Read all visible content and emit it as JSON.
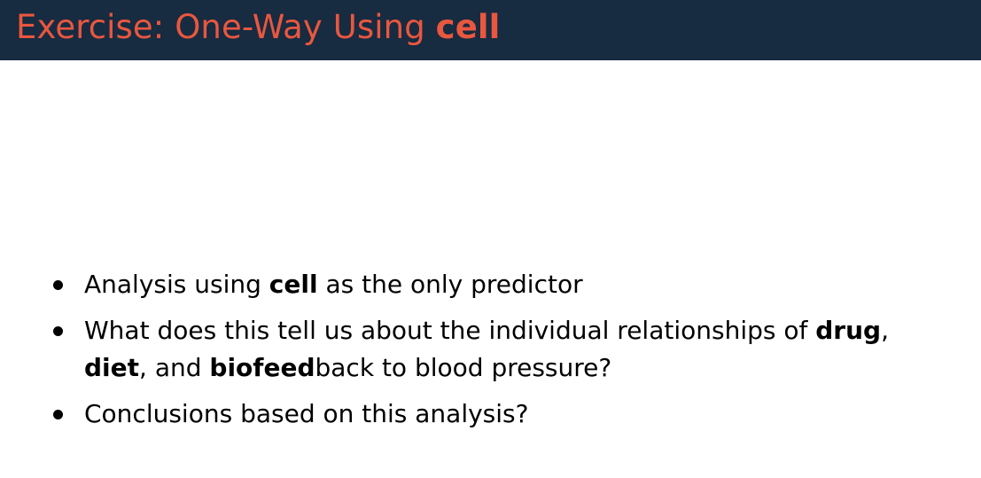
{
  "slide": {
    "title": {
      "prefix": "Exercise: One-Way Using ",
      "emphasis": "cell"
    },
    "bullets": [
      {
        "parts": [
          {
            "text": "Analysis using ",
            "bold": false
          },
          {
            "text": "cell",
            "bold": true
          },
          {
            "text": " as the only predictor",
            "bold": false
          }
        ]
      },
      {
        "parts": [
          {
            "text": "What does this tell us about the individual relationships of ",
            "bold": false
          },
          {
            "text": "drug",
            "bold": true
          },
          {
            "text": ", ",
            "bold": false
          },
          {
            "text": "diet",
            "bold": true
          },
          {
            "text": ", and ",
            "bold": false
          },
          {
            "text": "biofeed",
            "bold": true
          },
          {
            "text": "back to blood pressure?",
            "bold": false
          }
        ]
      },
      {
        "parts": [
          {
            "text": "Conclusions based on this analysis?",
            "bold": false
          }
        ]
      }
    ]
  },
  "colors": {
    "title_bar_bg": "#172b41",
    "title_text": "#e9573f",
    "body_text": "#000000"
  }
}
